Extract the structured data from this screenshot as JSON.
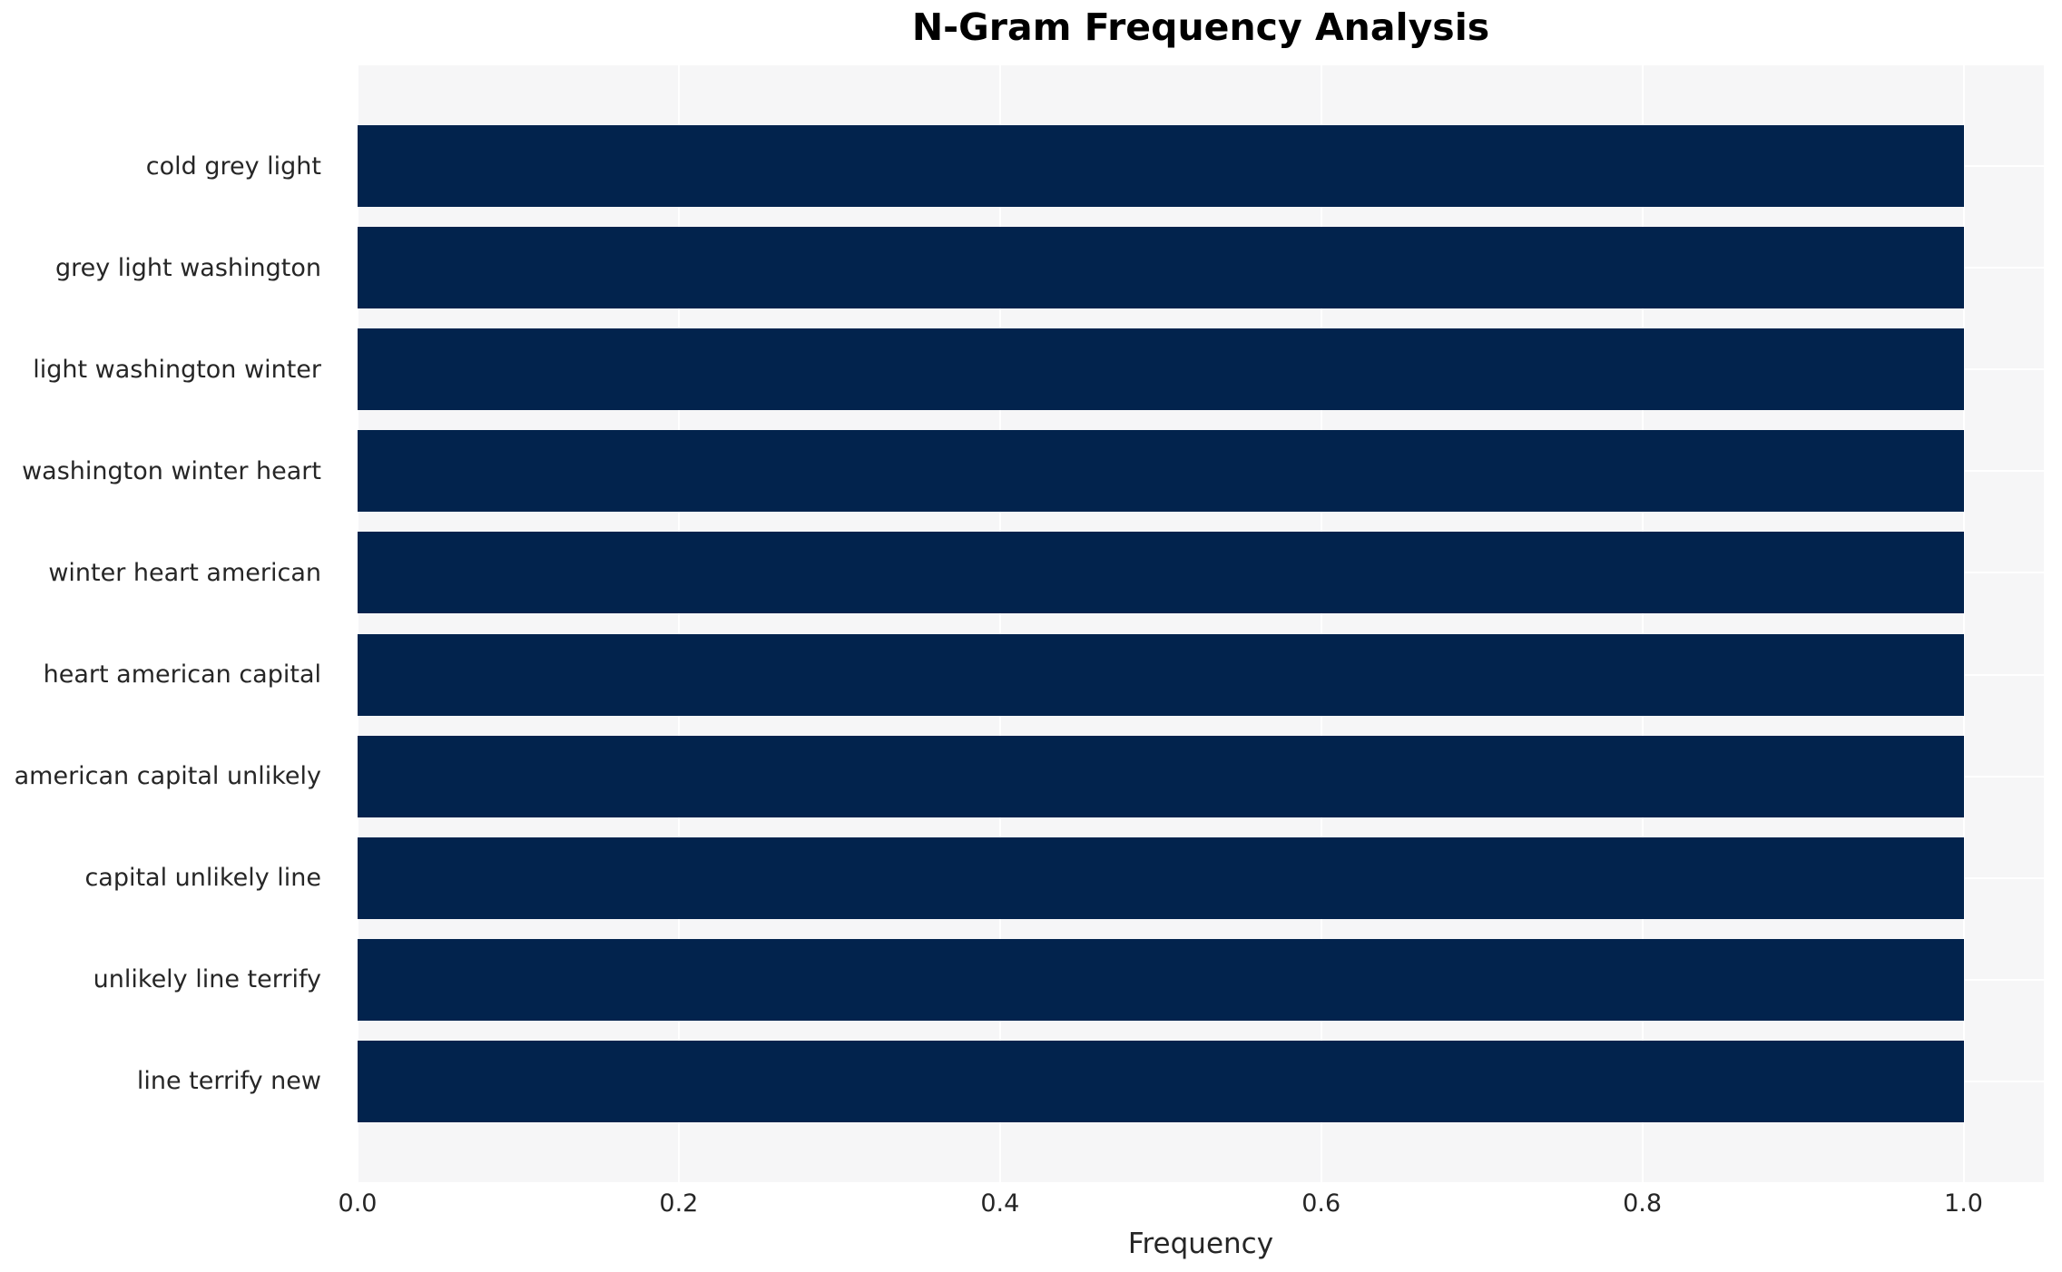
{
  "chart_data": {
    "type": "bar",
    "orientation": "horizontal",
    "title": "N-Gram Frequency Analysis",
    "xlabel": "Frequency",
    "ylabel": "",
    "categories": [
      "cold grey light",
      "grey light washington",
      "light washington winter",
      "washington winter heart",
      "winter heart american",
      "heart american capital",
      "american capital unlikely",
      "capital unlikely line",
      "unlikely line terrify",
      "line terrify new"
    ],
    "values": [
      1.0,
      1.0,
      1.0,
      1.0,
      1.0,
      1.0,
      1.0,
      1.0,
      1.0,
      1.0
    ],
    "xlim": [
      0,
      1.05
    ],
    "xticks": [
      0.0,
      0.2,
      0.4,
      0.6,
      0.8,
      1.0
    ],
    "xtick_labels": [
      "0.0",
      "0.2",
      "0.4",
      "0.6",
      "0.8",
      "1.0"
    ],
    "grid": true,
    "legend_position": "none",
    "colors": {
      "bar": "#02234d",
      "plot_background": "#f6f6f7",
      "figure_background": "#ffffff",
      "grid": "#ffffff",
      "tick_text": "#262626",
      "title_text": "#000000"
    }
  }
}
